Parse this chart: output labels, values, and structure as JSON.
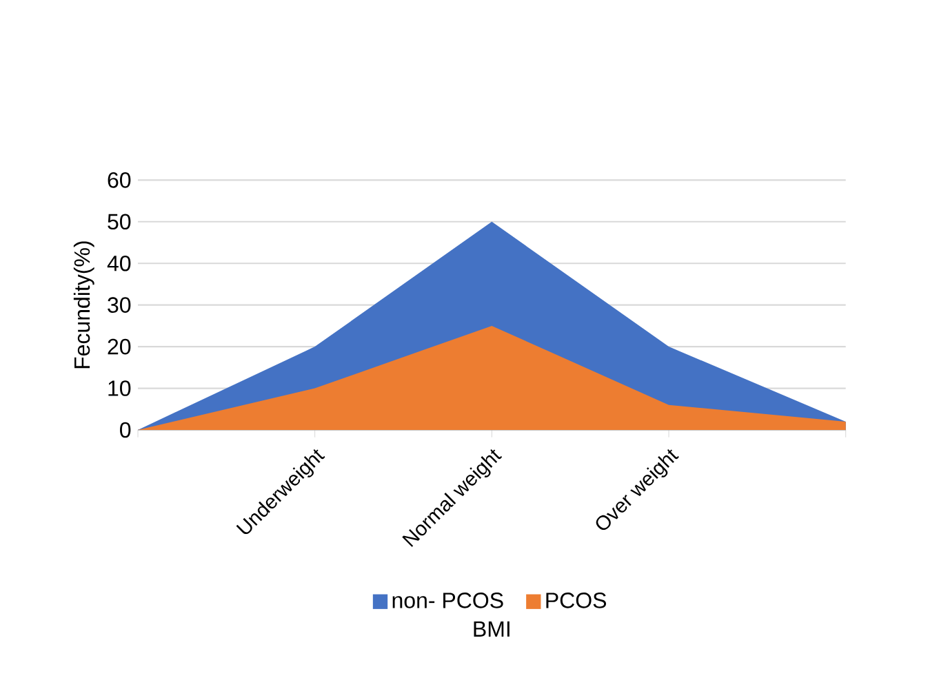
{
  "chart_data": {
    "type": "area",
    "xlabel": "BMI",
    "ylabel": "Fecundity(%)",
    "categories": [
      null,
      "Underweight",
      "Normal weight",
      "Over weight",
      null
    ],
    "series": [
      {
        "name": "non- PCOS",
        "color": "#4472c4",
        "values": [
          0,
          20,
          50,
          20,
          2
        ]
      },
      {
        "name": "PCOS",
        "color": "#ed7d31",
        "values": [
          0,
          10,
          25,
          6,
          2
        ]
      }
    ],
    "ylim": [
      0,
      60
    ],
    "yticks": [
      0,
      10,
      20,
      30,
      40,
      50,
      60
    ],
    "grid": "y",
    "legend": "bottom"
  }
}
